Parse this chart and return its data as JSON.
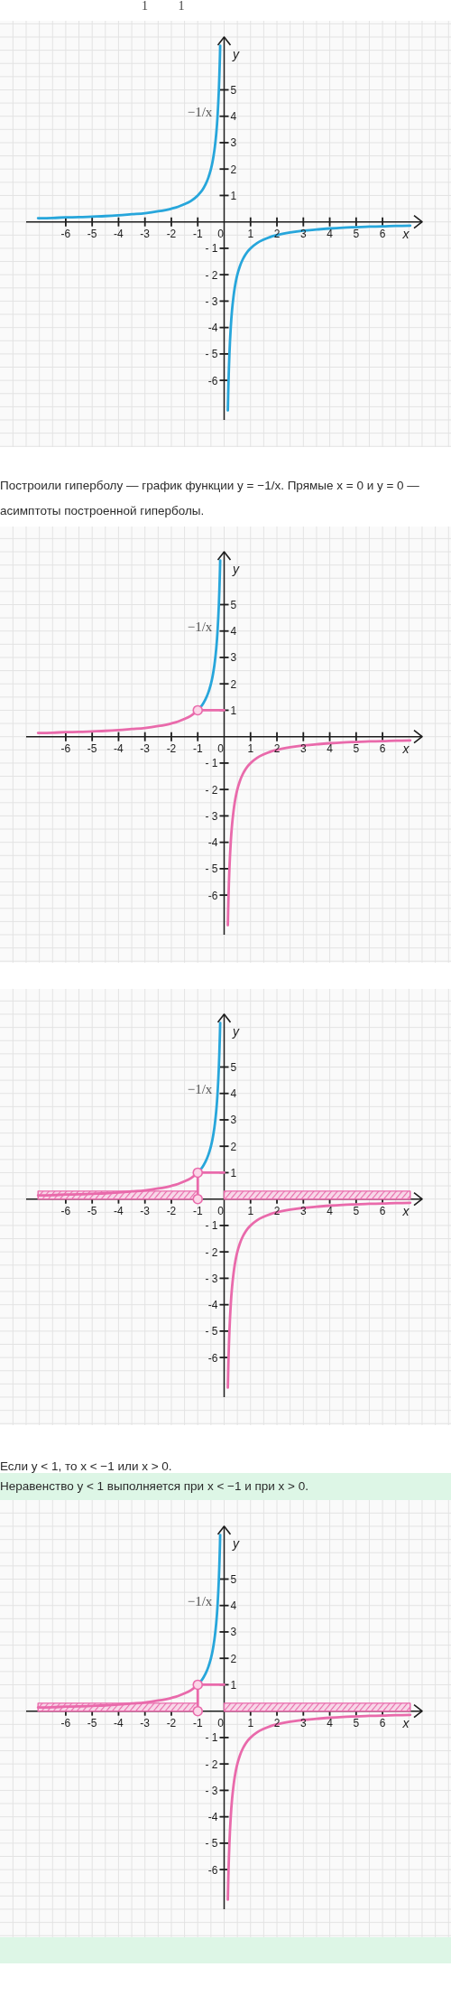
{
  "chart_data": [
    {
      "type": "line",
      "title": "1 1",
      "xlabel": "x",
      "y2label": "y",
      "xlim": [
        -7.5,
        7.5
      ],
      "ylim": [
        -7.5,
        7
      ],
      "y2lim": [
        -7.5,
        7
      ],
      "grid": true,
      "xticks": [
        -6,
        -5,
        -4,
        -3,
        -2,
        -1,
        0,
        1,
        2,
        3,
        4,
        5,
        6
      ],
      "yticks": [
        {
          "value": -6,
          "label": "-6"
        },
        {
          "value": -5,
          "label": "- 5"
        },
        {
          "value": -4,
          "label": "-4"
        },
        {
          "value": -3,
          "label": "- 3"
        },
        {
          "value": -2,
          "label": "- 2"
        },
        {
          "value": -1,
          "label": "- 1"
        }
      ],
      "y2ticks": [
        1,
        2,
        3,
        4,
        5
      ],
      "series": [
        {
          "color": "#27a6db",
          "x": [
            -7.05,
            -6.5,
            -6,
            -5.5,
            -5,
            -4.5,
            -4,
            -3.5,
            -3,
            -2.5,
            -2,
            -1.75,
            -1.5,
            -1.25,
            -1,
            -0.9,
            -0.8,
            -0.7,
            -0.6,
            -0.5,
            -0.45,
            -0.4,
            -0.35,
            -0.3,
            -0.27,
            -0.25,
            -0.22,
            -0.2,
            -0.18,
            -0.16,
            -0.15,
            0,
            0.14,
            0.15,
            0.16,
            0.18,
            0.2,
            0.22,
            0.25,
            0.27,
            0.3,
            0.35,
            0.4,
            0.45,
            0.5,
            0.6,
            0.7,
            0.8,
            0.9,
            1,
            1.25,
            1.5,
            1.75,
            2,
            2.5,
            3,
            3.5,
            4,
            4.5,
            5,
            5.5,
            6,
            6.5,
            7.05
          ],
          "values": [
            0.14,
            0.15,
            0.17,
            0.18,
            0.2,
            0.22,
            0.25,
            0.29,
            0.33,
            0.4,
            0.5,
            0.57,
            0.67,
            0.8,
            1,
            1.11,
            1.25,
            1.43,
            1.67,
            2,
            2.22,
            2.5,
            2.86,
            3.33,
            3.7,
            4,
            4.55,
            5,
            5.56,
            6.25,
            6.67,
            null,
            -7.14,
            -6.67,
            -6.25,
            -5.56,
            -5,
            -4.55,
            -4,
            -3.7,
            -3.33,
            -2.86,
            -2.5,
            -2.22,
            -2,
            -1.67,
            -1.43,
            -1.25,
            -1.11,
            -1,
            -0.8,
            -0.67,
            -0.57,
            -0.5,
            -0.4,
            -0.33,
            -0.29,
            -0.25,
            -0.22,
            -0.2,
            -0.18,
            -0.17,
            -0.15,
            -0.14
          ]
        }
      ],
      "annotations": [
        "−1/x",
        "Построили гиперболу — график функции y = −1/x. Прямые x = 0 и y = 0 — асимптоты построенной гиперболы."
      ]
    },
    {
      "type": "line",
      "xlabel": "x",
      "y2label": "y",
      "xlim": [
        -7.5,
        7.5
      ],
      "ylim": [
        -7.5,
        7
      ],
      "y2lim": [
        -7.5,
        7
      ],
      "grid": true,
      "xticks": [
        -6,
        -5,
        -4,
        -3,
        -2,
        -1,
        0,
        1,
        2,
        3,
        4,
        5,
        6
      ],
      "yticks": [
        {
          "value": -6,
          "label": "-6"
        },
        {
          "value": -5,
          "label": "- 5"
        },
        {
          "value": -4,
          "label": "-4"
        },
        {
          "value": -3,
          "label": "- 3"
        },
        {
          "value": -2,
          "label": "- 2"
        },
        {
          "value": -1,
          "label": "- 1"
        }
      ],
      "y2ticks": [
        1,
        2,
        3,
        4,
        5
      ],
      "series": [
        {
          "color": "#27a6db",
          "x": [
            -1,
            -0.9,
            -0.8,
            -0.7,
            -0.6,
            -0.5,
            -0.45,
            -0.4,
            -0.35,
            -0.3,
            -0.27,
            -0.25,
            -0.22,
            -0.2,
            -0.18,
            -0.16,
            -0.15
          ],
          "values": [
            1,
            1.11,
            1.25,
            1.43,
            1.67,
            2,
            2.22,
            2.5,
            2.86,
            3.33,
            3.7,
            4,
            4.55,
            5,
            5.56,
            6.25,
            6.67
          ]
        },
        {
          "color": "#e96aab",
          "x": [
            -7.05,
            -6.5,
            -6,
            -5.5,
            -5,
            -4.5,
            -4,
            -3.5,
            -3,
            -2.5,
            -2,
            -1.75,
            -1.5,
            -1.25,
            -1,
            0,
            0.14,
            0.15,
            0.16,
            0.18,
            0.2,
            0.22,
            0.25,
            0.27,
            0.3,
            0.35,
            0.4,
            0.45,
            0.5,
            0.6,
            0.7,
            0.8,
            0.9,
            1,
            1.25,
            1.5,
            1.75,
            2,
            2.5,
            3,
            3.5,
            4,
            4.5,
            5,
            5.5,
            6,
            6.5,
            7.05
          ],
          "values": [
            0.14,
            0.15,
            0.17,
            0.18,
            0.2,
            0.22,
            0.25,
            0.29,
            0.33,
            0.4,
            0.5,
            0.57,
            0.67,
            0.8,
            1,
            null,
            -7.14,
            -6.67,
            -6.25,
            -5.56,
            -5,
            -4.55,
            -4,
            -3.7,
            -3.33,
            -2.86,
            -2.5,
            -2.22,
            -2,
            -1.67,
            -1.43,
            -1.25,
            -1.11,
            -1,
            -0.8,
            -0.67,
            -0.57,
            -0.5,
            -0.4,
            -0.33,
            -0.29,
            -0.25,
            -0.22,
            -0.2,
            -0.18,
            -0.17,
            -0.15,
            -0.14
          ]
        },
        {
          "color": "#e96aab",
          "x": [
            -1,
            0
          ],
          "values": [
            1,
            1
          ]
        },
        {
          "type": "scatter",
          "color": "#e96aab",
          "marker": "circle",
          "x": [
            -1
          ],
          "values": [
            1
          ]
        }
      ],
      "annotations": [
        "−1/x"
      ]
    },
    {
      "type": "line",
      "xlabel": "x",
      "y2label": "y",
      "xlim": [
        -7.5,
        7.5
      ],
      "ylim": [
        -7.5,
        7
      ],
      "y2lim": [
        -7.5,
        7
      ],
      "grid": true,
      "xticks": [
        -6,
        -5,
        -4,
        -3,
        -2,
        -1,
        0,
        1,
        2,
        3,
        4,
        5,
        6
      ],
      "yticks": [
        {
          "value": -6,
          "label": "-6"
        },
        {
          "value": -5,
          "label": "- 5"
        },
        {
          "value": -4,
          "label": "-4"
        },
        {
          "value": -3,
          "label": "- 3"
        },
        {
          "value": -2,
          "label": "- 2"
        },
        {
          "value": -1,
          "label": "- 1"
        }
      ],
      "y2ticks": [
        1,
        2,
        3,
        4,
        5
      ],
      "series": [
        {
          "type": "area",
          "color": "#e96aab",
          "x": [
            -7.05,
            -1
          ],
          "values": [
            0.3,
            0.3
          ]
        },
        {
          "type": "area",
          "color": "#e96aab",
          "x": [
            0,
            7.05
          ],
          "values": [
            0.3,
            0.3
          ]
        },
        {
          "color": "#27a6db",
          "x": [
            -1,
            -0.9,
            -0.8,
            -0.7,
            -0.6,
            -0.5,
            -0.45,
            -0.4,
            -0.35,
            -0.3,
            -0.27,
            -0.25,
            -0.22,
            -0.2,
            -0.18,
            -0.16,
            -0.15
          ],
          "values": [
            1,
            1.11,
            1.25,
            1.43,
            1.67,
            2,
            2.22,
            2.5,
            2.86,
            3.33,
            3.7,
            4,
            4.55,
            5,
            5.56,
            6.25,
            6.67
          ]
        },
        {
          "color": "#e96aab",
          "x": [
            -7.05,
            -6.5,
            -6,
            -5.5,
            -5,
            -4.5,
            -4,
            -3.5,
            -3,
            -2.5,
            -2,
            -1.75,
            -1.5,
            -1.25,
            -1,
            0,
            0.14,
            0.15,
            0.16,
            0.18,
            0.2,
            0.22,
            0.25,
            0.27,
            0.3,
            0.35,
            0.4,
            0.45,
            0.5,
            0.6,
            0.7,
            0.8,
            0.9,
            1,
            1.25,
            1.5,
            1.75,
            2,
            2.5,
            3,
            3.5,
            4,
            4.5,
            5,
            5.5,
            6,
            6.5,
            7.05
          ],
          "values": [
            0.14,
            0.15,
            0.17,
            0.18,
            0.2,
            0.22,
            0.25,
            0.29,
            0.33,
            0.4,
            0.5,
            0.57,
            0.67,
            0.8,
            1,
            null,
            -7.14,
            -6.67,
            -6.25,
            -5.56,
            -5,
            -4.55,
            -4,
            -3.7,
            -3.33,
            -2.86,
            -2.5,
            -2.22,
            -2,
            -1.67,
            -1.43,
            -1.25,
            -1.11,
            -1,
            -0.8,
            -0.67,
            -0.57,
            -0.5,
            -0.4,
            -0.33,
            -0.29,
            -0.25,
            -0.22,
            -0.2,
            -0.18,
            -0.17,
            -0.15,
            -0.14
          ]
        },
        {
          "color": "#e96aab",
          "x": [
            0,
            -1,
            -1
          ],
          "values": [
            1,
            1,
            0
          ]
        },
        {
          "type": "scatter",
          "color": "#e96aab",
          "marker": "circle",
          "x": [
            -1,
            -1
          ],
          "values": [
            1,
            0
          ]
        }
      ],
      "annotations": [
        "−1/x",
        "Если y < 1, то x < −1 или x > 0."
      ]
    },
    {
      "type": "line",
      "title": "Неравенство y < 1 выполняется при x < −1 и при x > 0.",
      "xlabel": "x",
      "y2label": "y",
      "xlim": [
        -7.5,
        7.5
      ],
      "ylim": [
        -7.5,
        7
      ],
      "y2lim": [
        -7.5,
        7
      ],
      "grid": true,
      "xticks": [
        -6,
        -5,
        -4,
        -3,
        -2,
        -1,
        0,
        1,
        2,
        3,
        4,
        5,
        6
      ],
      "yticks": [
        {
          "value": -6,
          "label": "-6"
        },
        {
          "value": -5,
          "label": "- 5"
        },
        {
          "value": -4,
          "label": "-4"
        },
        {
          "value": -3,
          "label": "- 3"
        },
        {
          "value": -2,
          "label": "- 2"
        },
        {
          "value": -1,
          "label": "- 1"
        }
      ],
      "y2ticks": [
        1,
        2,
        3,
        4,
        5
      ],
      "series": [
        {
          "type": "area",
          "color": "#e96aab",
          "x": [
            -7.05,
            -1
          ],
          "values": [
            0.3,
            0.3
          ]
        },
        {
          "type": "area",
          "color": "#e96aab",
          "x": [
            0,
            7.05
          ],
          "values": [
            0.3,
            0.3
          ]
        },
        {
          "color": "#27a6db",
          "x": [
            -1,
            -0.9,
            -0.8,
            -0.7,
            -0.6,
            -0.5,
            -0.45,
            -0.4,
            -0.35,
            -0.3,
            -0.27,
            -0.25,
            -0.22,
            -0.2,
            -0.18,
            -0.16,
            -0.15
          ],
          "values": [
            1,
            1.11,
            1.25,
            1.43,
            1.67,
            2,
            2.22,
            2.5,
            2.86,
            3.33,
            3.7,
            4,
            4.55,
            5,
            5.56,
            6.25,
            6.67
          ]
        },
        {
          "color": "#e96aab",
          "x": [
            -7.05,
            -6.5,
            -6,
            -5.5,
            -5,
            -4.5,
            -4,
            -3.5,
            -3,
            -2.5,
            -2,
            -1.75,
            -1.5,
            -1.25,
            -1,
            0,
            0.14,
            0.15,
            0.16,
            0.18,
            0.2,
            0.22,
            0.25,
            0.27,
            0.3,
            0.35,
            0.4,
            0.45,
            0.5,
            0.6,
            0.7,
            0.8,
            0.9,
            1,
            1.25,
            1.5,
            1.75,
            2,
            2.5,
            3,
            3.5,
            4,
            4.5,
            5,
            5.5,
            6,
            6.5,
            7.05
          ],
          "values": [
            0.14,
            0.15,
            0.17,
            0.18,
            0.2,
            0.22,
            0.25,
            0.29,
            0.33,
            0.4,
            0.5,
            0.57,
            0.67,
            0.8,
            1,
            null,
            -7.14,
            -6.67,
            -6.25,
            -5.56,
            -5,
            -4.55,
            -4,
            -3.7,
            -3.33,
            -2.86,
            -2.5,
            -2.22,
            -2,
            -1.67,
            -1.43,
            -1.25,
            -1.11,
            -1,
            -0.8,
            -0.67,
            -0.57,
            -0.5,
            -0.4,
            -0.33,
            -0.29,
            -0.25,
            -0.22,
            -0.2,
            -0.18,
            -0.17,
            -0.15,
            -0.14
          ]
        },
        {
          "color": "#e96aab",
          "x": [
            0,
            -1,
            -1
          ],
          "values": [
            1,
            1,
            0
          ]
        },
        {
          "type": "scatter",
          "color": "#e96aab",
          "marker": "circle",
          "x": [
            -1,
            -1
          ],
          "values": [
            1,
            0
          ]
        }
      ],
      "annotations": [
        "−1/x"
      ]
    }
  ]
}
